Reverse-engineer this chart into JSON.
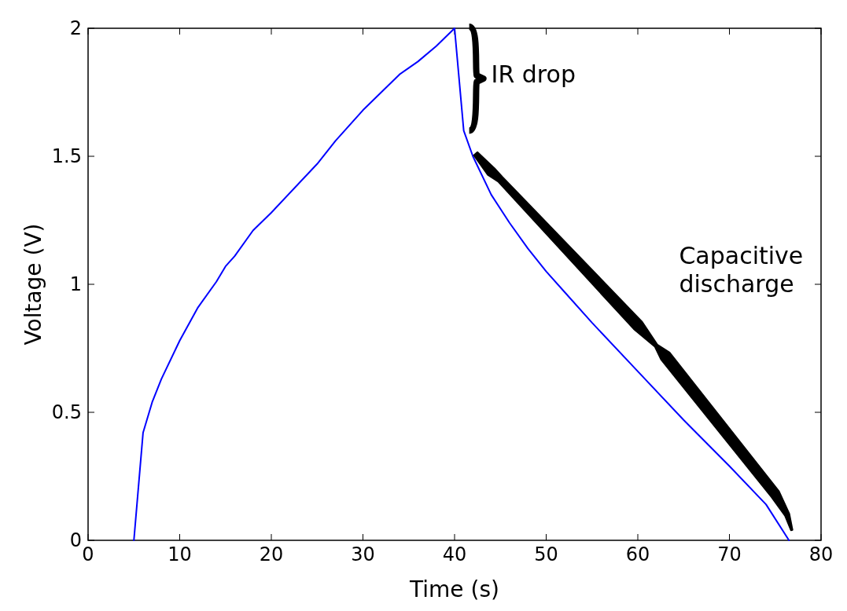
{
  "chart_data": {
    "type": "line",
    "xlabel": "Time (s)",
    "ylabel": "Voltage (V)",
    "xlim": [
      0,
      80
    ],
    "xticks": [
      0,
      10,
      20,
      30,
      40,
      50,
      60,
      70,
      80
    ],
    "ylim": [
      0,
      2
    ],
    "yticks": [
      0,
      0.5,
      1,
      1.5,
      2
    ],
    "grid": false,
    "x": [
      5,
      6,
      7,
      8,
      10,
      12,
      14,
      15,
      16,
      18,
      20,
      25,
      27,
      28,
      30,
      32,
      34,
      36,
      38,
      40,
      41,
      42,
      44,
      46,
      48,
      50,
      52,
      55,
      60,
      65,
      70,
      74,
      76.5
    ],
    "series": [
      {
        "color": "#0000ff",
        "values": [
          0,
          0.42,
          0.54,
          0.63,
          0.78,
          0.91,
          1.01,
          1.07,
          1.11,
          1.21,
          1.28,
          1.47,
          1.56,
          1.6,
          1.68,
          1.75,
          1.82,
          1.87,
          1.93,
          2.0,
          1.6,
          1.5,
          1.35,
          1.24,
          1.14,
          1.05,
          0.97,
          0.85,
          0.66,
          0.47,
          0.29,
          0.14,
          0
        ]
      }
    ],
    "annotations": [
      "IR drop",
      "Capacitive discharge"
    ]
  }
}
